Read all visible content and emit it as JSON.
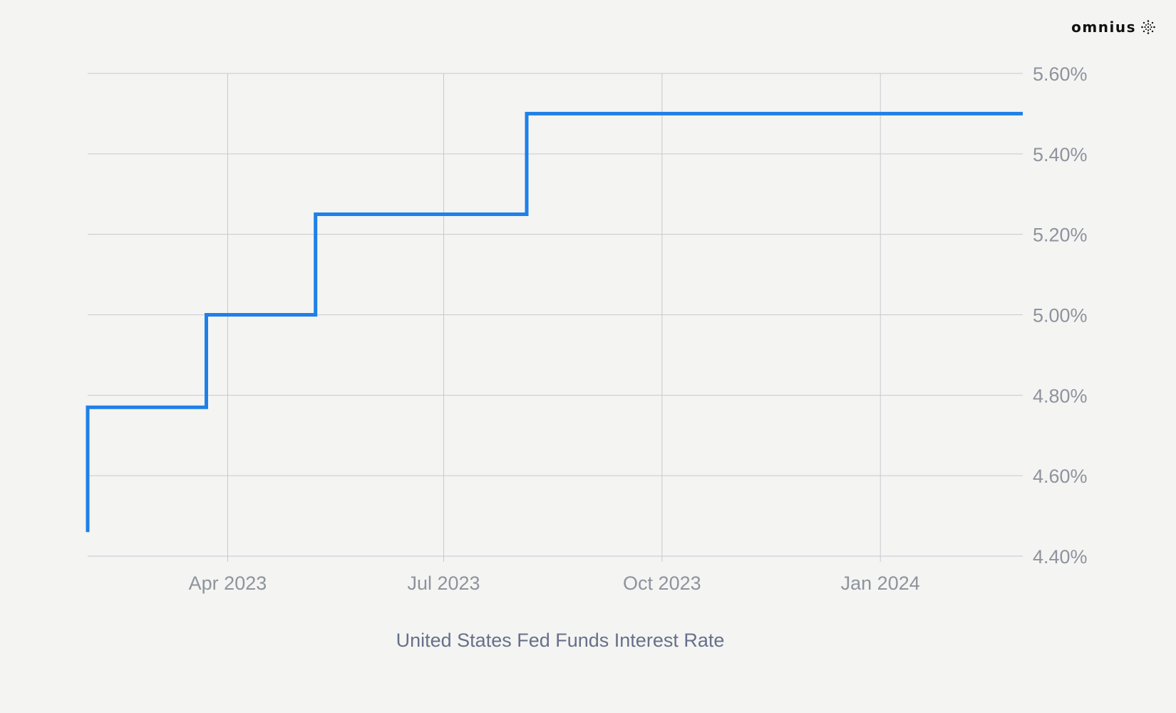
{
  "brand": {
    "name": "omnius",
    "icon": "dotted-sphere-logo"
  },
  "colors": {
    "background": "#f4f4f2",
    "line": "#1f80e8",
    "grid": "#c6c9d0",
    "tick": "#8e939d",
    "axis_title": "#66708a"
  },
  "chart_data": {
    "type": "line",
    "step": true,
    "title": "",
    "xlabel": "United States Fed Funds Interest Rate",
    "ylabel": "",
    "x_ticks": [
      "2023-04-01",
      "2023-07-01",
      "2023-10-01",
      "2024-01-01"
    ],
    "x_tick_labels": [
      "Apr 2023",
      "Jul 2023",
      "Oct 2023",
      "Jan 2024"
    ],
    "y_ticks": [
      4.4,
      4.6,
      4.8,
      5.0,
      5.2,
      5.4,
      5.6
    ],
    "y_tick_labels": [
      "4.40%",
      "4.60%",
      "4.80%",
      "5.00%",
      "5.20%",
      "5.40%",
      "5.60%"
    ],
    "xlim": [
      "2023-02-01",
      "2024-03-01"
    ],
    "ylim": [
      4.4,
      5.6
    ],
    "y_axis_position": "right",
    "grid": true,
    "series": [
      {
        "name": "",
        "points": [
          {
            "x": "2023-02-01",
            "y": 4.46
          },
          {
            "x": "2023-02-01",
            "y": 4.77
          },
          {
            "x": "2023-03-23",
            "y": 4.77
          },
          {
            "x": "2023-03-23",
            "y": 5.0
          },
          {
            "x": "2023-05-08",
            "y": 5.0
          },
          {
            "x": "2023-05-08",
            "y": 5.25
          },
          {
            "x": "2023-08-05",
            "y": 5.25
          },
          {
            "x": "2023-08-05",
            "y": 5.5
          },
          {
            "x": "2024-03-01",
            "y": 5.5
          }
        ]
      }
    ]
  }
}
